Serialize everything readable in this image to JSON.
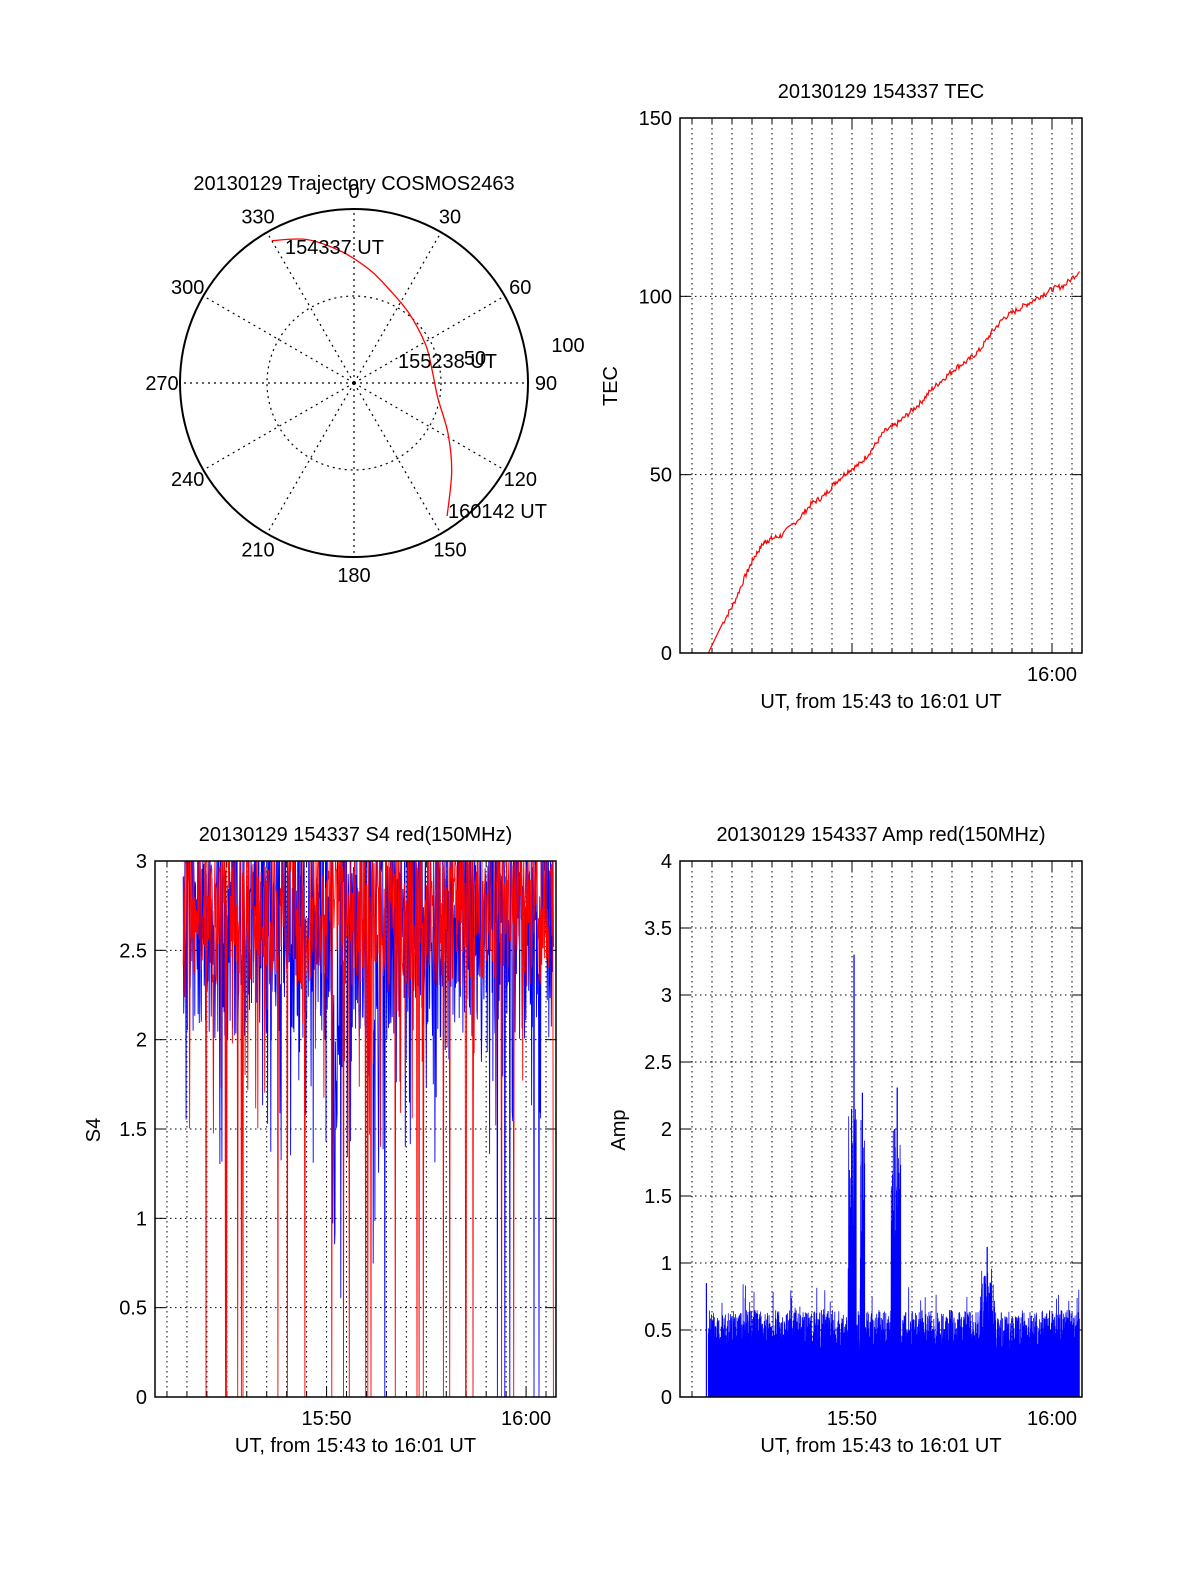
{
  "chart_data": [
    {
      "type": "polar",
      "title": "20130129 Trajectory COSMOS2463",
      "azimuth_labels": [
        "0",
        "30",
        "60",
        "90",
        "120",
        "150",
        "180",
        "210",
        "240",
        "270",
        "300",
        "330"
      ],
      "radial_labels": [
        "50",
        "100"
      ],
      "trajectory": {
        "color": "#ff0000",
        "points": [
          {
            "az": 330,
            "el": 5
          },
          {
            "az": 342,
            "el": 12
          },
          {
            "az": 355,
            "el": 22
          },
          {
            "az": 8,
            "el": 31
          },
          {
            "az": 20,
            "el": 38
          },
          {
            "az": 38,
            "el": 44
          },
          {
            "az": 62,
            "el": 48
          },
          {
            "az": 82,
            "el": 49
          },
          {
            "az": 100,
            "el": 46
          },
          {
            "az": 118,
            "el": 35
          },
          {
            "az": 132,
            "el": 22
          },
          {
            "az": 145,
            "el": 6
          }
        ]
      },
      "annotations": [
        {
          "text": "154337 UT",
          "az": 330,
          "el": 5
        },
        {
          "text": "155238 UT",
          "az": 80,
          "el": 49
        },
        {
          "text": "160142 UT",
          "az": 145,
          "el": 6
        }
      ]
    },
    {
      "type": "line",
      "title": "20130129 154337 TEC",
      "xlabel": "UT, from 15:43 to 16:01 UT",
      "ylabel": "TEC",
      "xlim": [
        15.69,
        16.025
      ],
      "ylim": [
        0,
        150
      ],
      "yticks": [
        0,
        50,
        100,
        150
      ],
      "xticks": [
        {
          "value": 16.0,
          "label": "16:00"
        }
      ],
      "series": [
        {
          "color": "#ff0000",
          "x": [
            15.7136,
            15.725,
            15.735,
            15.745,
            15.752,
            15.76,
            15.766,
            15.775,
            15.79,
            15.8,
            15.81,
            15.82,
            15.83,
            15.84,
            15.85,
            15.86,
            15.87,
            15.88,
            15.89,
            15.9,
            15.91,
            15.92,
            15.93,
            15.94,
            15.95,
            15.96,
            15.97,
            15.98,
            15.99,
            16.0,
            16.01,
            16.0228
          ],
          "values": [
            0,
            8,
            14,
            22,
            27,
            31,
            32,
            33,
            38,
            42,
            44,
            48,
            51,
            53,
            57,
            62,
            64,
            67,
            70,
            74,
            77,
            80,
            82,
            85,
            90,
            94,
            96,
            98,
            100,
            102,
            103,
            107
          ]
        }
      ]
    },
    {
      "type": "line",
      "title": "20130129 154337 S4 red(150MHz)",
      "xlabel": "UT, from 15:43 to 16:01 UT",
      "ylabel": "S4",
      "xlim": [
        15.69,
        16.025
      ],
      "ylim": [
        0,
        3
      ],
      "yticks": [
        0,
        0.5,
        1,
        1.5,
        2,
        2.5,
        3
      ],
      "xticks": [
        {
          "value": 15.8333,
          "label": "15:50"
        },
        {
          "value": 16.0,
          "label": "16:00"
        }
      ],
      "series": [
        {
          "color": "#0000ff",
          "style": "dense-noise",
          "base": 2.4,
          "spread": 0.9
        },
        {
          "color": "#ff0000",
          "style": "dense-noise",
          "base": 2.6,
          "spread": 0.6
        }
      ]
    },
    {
      "type": "line",
      "title": "20130129 154337 Amp red(150MHz)",
      "xlabel": "UT, from 15:43 to 16:01 UT",
      "ylabel": "Amp",
      "xlim": [
        15.69,
        16.025
      ],
      "ylim": [
        0,
        4
      ],
      "yticks": [
        0,
        0.5,
        1,
        1.5,
        2,
        2.5,
        3,
        3.5,
        4
      ],
      "xticks": [
        {
          "value": 15.8333,
          "label": "15:50"
        },
        {
          "value": 16.0,
          "label": "16:00"
        }
      ],
      "series": [
        {
          "color": "#0000ff",
          "style": "dense-noise",
          "peaks": [
            {
              "x": 15.835,
              "value": 3.3
            },
            {
              "x": 15.833,
              "value": 2.15
            },
            {
              "x": 15.842,
              "value": 2.27
            },
            {
              "x": 15.871,
              "value": 2.31
            },
            {
              "x": 15.869,
              "value": 2.0
            },
            {
              "x": 15.946,
              "value": 1.12
            },
            {
              "x": 15.712,
              "value": 0.85
            }
          ]
        }
      ]
    }
  ]
}
